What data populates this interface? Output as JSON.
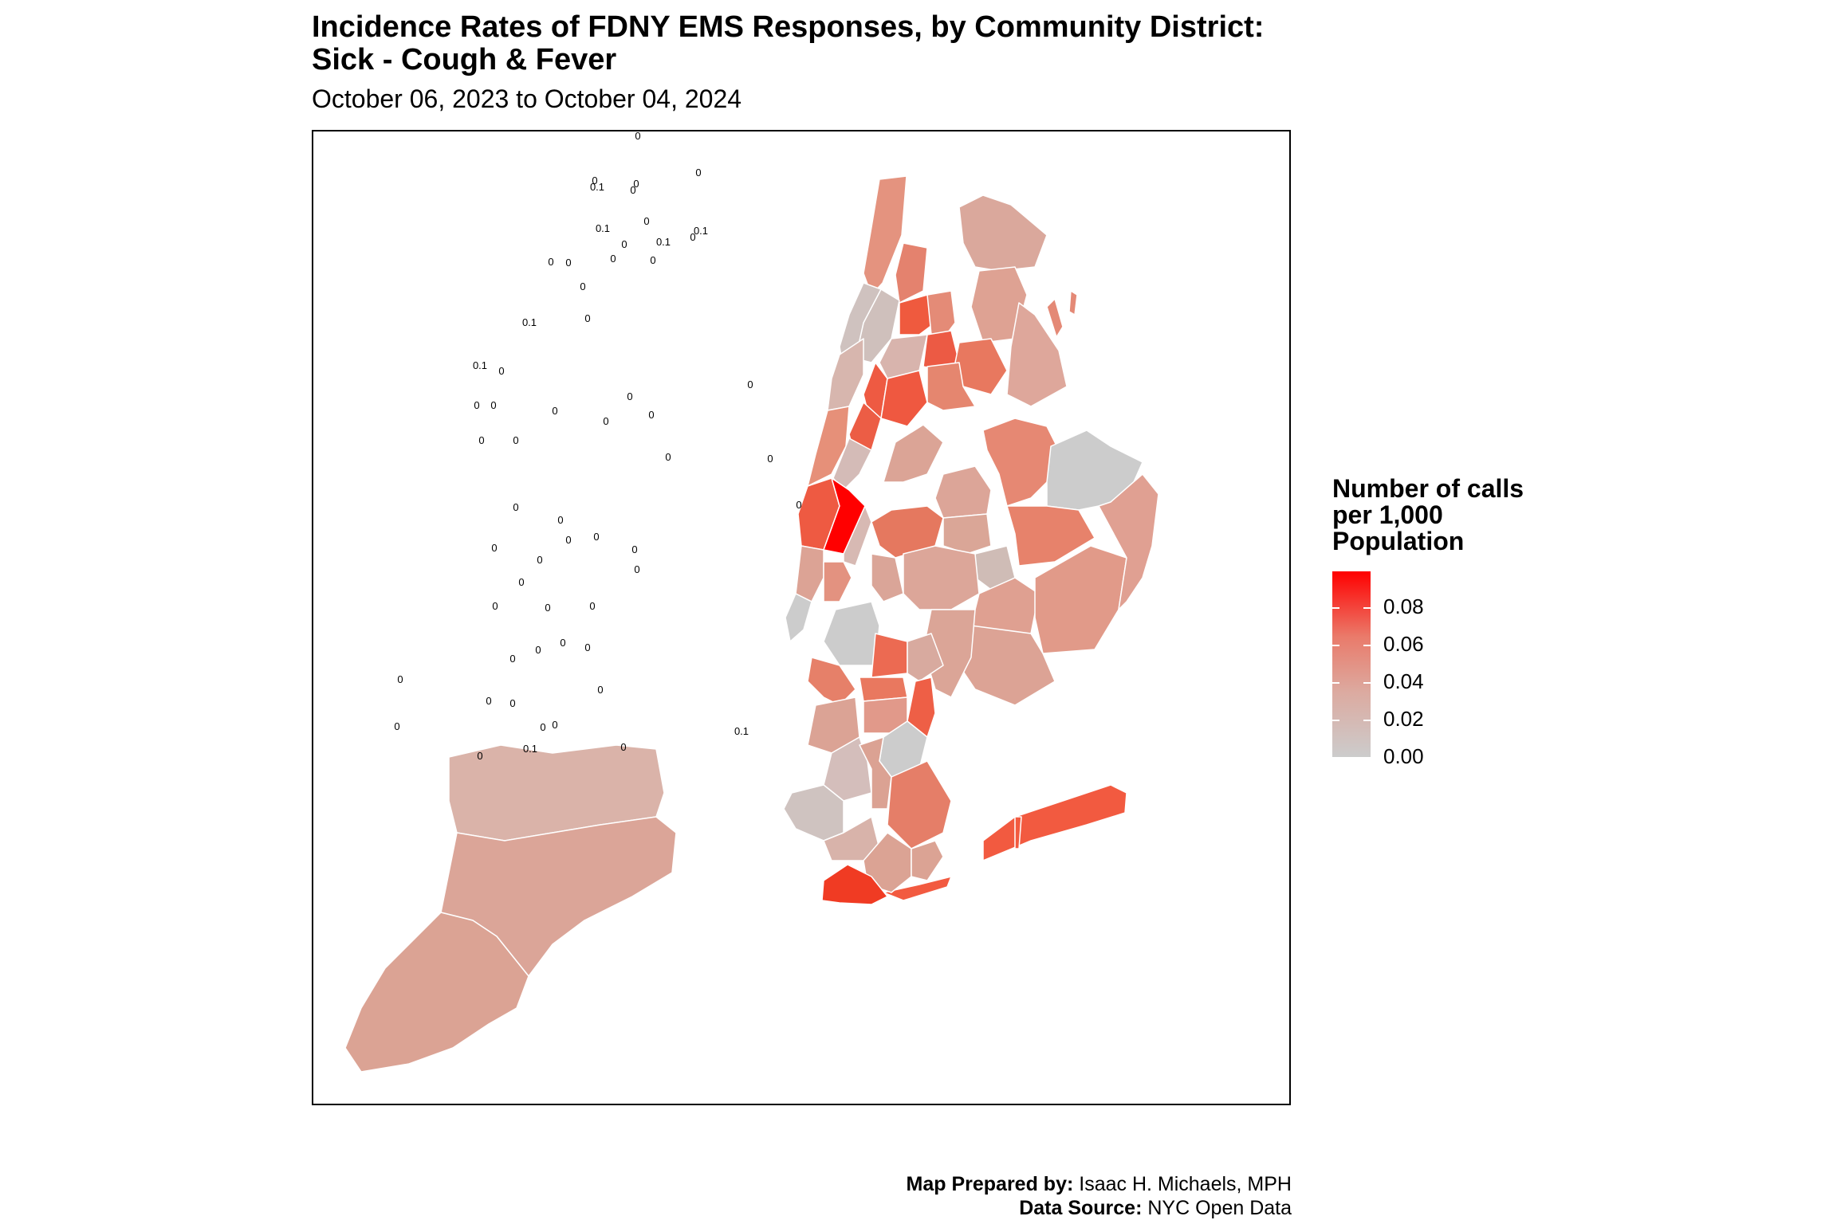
{
  "title_line1": "Incidence Rates of FDNY EMS Responses, by Community District:",
  "title_line2": "Sick - Cough & Fever",
  "subtitle": "October 06, 2023 to October 04, 2024",
  "legend": {
    "title_line1": "Number of calls",
    "title_line2": "per 1,000",
    "title_line3": "Population",
    "ticks": [
      "0.08",
      "0.06",
      "0.04",
      "0.02",
      "0.00"
    ],
    "colors": {
      "low": "#cccccc",
      "high": "#ff0000"
    }
  },
  "credits": {
    "prepared_label": "Map Prepared by:",
    "prepared_value": "Isaac H. Michaels, MPH",
    "source_label": "Data Source:",
    "source_value": "NYC Open Data"
  },
  "district_labels": [
    "0",
    "0",
    "0",
    "0",
    "0",
    "0.1",
    "0",
    "0",
    "0.1",
    "0",
    "0",
    "0",
    "0.1",
    "0.1",
    "0",
    "0",
    "0",
    "0",
    "0",
    "0.1",
    "0.1",
    "0",
    "0",
    "0",
    "0",
    "0",
    "0",
    "0",
    "0",
    "0",
    "0",
    "0",
    "0",
    "0",
    "0",
    "0",
    "0",
    "0",
    "0",
    "0",
    "0",
    "0",
    "0",
    "0",
    "0",
    "0",
    "0",
    "0",
    "0",
    "0",
    "0",
    "0",
    "0",
    "0",
    "0",
    "0",
    "0",
    "0.1",
    "0.1",
    "0",
    "0",
    "0",
    "0"
  ]
}
